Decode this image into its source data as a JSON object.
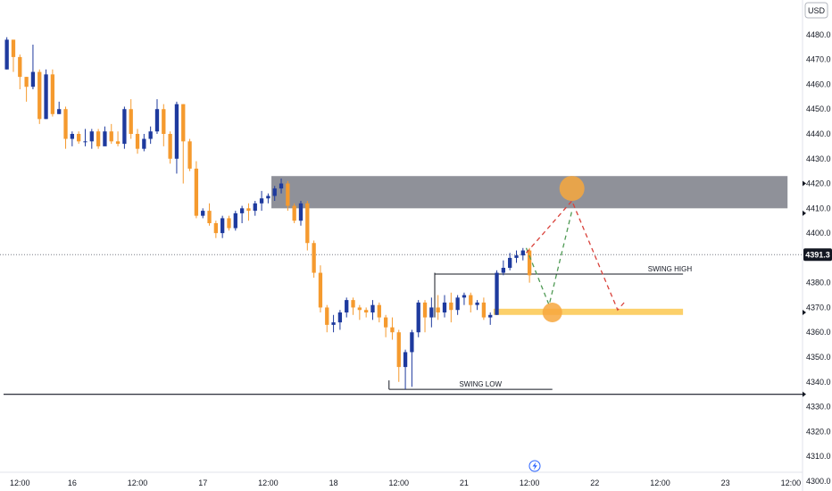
{
  "chart_data": {
    "type": "candlestick",
    "currency": "USD",
    "current_price": "4391.3",
    "colors": {
      "up": "#1e3a9e",
      "down": "#f59a2e",
      "zone": "#8f9199",
      "support": "#fcd06a",
      "target_circle": "#f7a73d",
      "path_up": "#4f9a54",
      "path_down": "#d9413a"
    },
    "ylim": [
      4296,
      4494
    ],
    "xlim": [
      0,
      120
    ],
    "grid": false,
    "y_ticks": [
      "4480.0",
      "4470.0",
      "4460.0",
      "4450.0",
      "4440.0",
      "4430.0",
      "4420.0",
      "4410.0",
      "4400.0",
      "4380.0",
      "4370.0",
      "4360.0",
      "4350.0",
      "4340.0",
      "4330.0",
      "4320.0",
      "4310.0",
      "4300.0"
    ],
    "x_ticks": [
      {
        "label": "12:00",
        "x": 2.5
      },
      {
        "label": "16",
        "x": 10.5
      },
      {
        "label": "12:00",
        "x": 20.5
      },
      {
        "label": "17",
        "x": 30.5
      },
      {
        "label": "12:00",
        "x": 40.5
      },
      {
        "label": "18",
        "x": 50.5
      },
      {
        "label": "12:00",
        "x": 60.5
      },
      {
        "label": "21",
        "x": 70.5
      },
      {
        "label": "12:00",
        "x": 80.5
      },
      {
        "label": "22",
        "x": 90.5
      },
      {
        "label": "12:00",
        "x": 100.5
      },
      {
        "label": "23",
        "x": 110.5
      },
      {
        "label": "12:00",
        "x": 120.5
      }
    ],
    "candles": [
      [
        4466,
        4478,
        4479,
        4466
      ],
      [
        4478,
        4471,
        4478,
        4465
      ],
      [
        4471,
        4463,
        4472,
        4458
      ],
      [
        4463,
        4459,
        4463,
        4453
      ],
      [
        4459,
        4465,
        4476,
        4458
      ],
      [
        4465,
        4446,
        4466,
        4444
      ],
      [
        4446,
        4464,
        4466,
        4446
      ],
      [
        4464,
        4448,
        4466,
        4447
      ],
      [
        4448,
        4450,
        4453,
        4448
      ],
      [
        4450,
        4438,
        4451,
        4434
      ],
      [
        4438,
        4440,
        4441,
        4435
      ],
      [
        4440,
        4437,
        4441,
        4436
      ],
      [
        4437,
        4437,
        4442,
        4435
      ],
      [
        4437,
        4441,
        4442,
        4434
      ],
      [
        4441,
        4435,
        4442,
        4434
      ],
      [
        4435,
        4441,
        4443,
        4439
      ],
      [
        4441,
        4437,
        4444,
        4436
      ],
      [
        4437,
        4436,
        4441,
        4435
      ],
      [
        4436,
        4450,
        4451,
        4434
      ],
      [
        4450,
        4440,
        4454,
        4438
      ],
      [
        4440,
        4434,
        4442,
        4432
      ],
      [
        4434,
        4438,
        4440,
        4433
      ],
      [
        4438,
        4441,
        4443,
        4436
      ],
      [
        4441,
        4450,
        4454,
        4440
      ],
      [
        4450,
        4440,
        4452,
        4435
      ],
      [
        4440,
        4430,
        4441,
        4428
      ],
      [
        4430,
        4452,
        4453,
        4424
      ],
      [
        4452,
        4437,
        4452,
        4420
      ],
      [
        4437,
        4426,
        4438,
        4425
      ],
      [
        4426,
        4407,
        4429,
        4406
      ],
      [
        4407,
        4409,
        4410,
        4406
      ],
      [
        4409,
        4404,
        4412,
        4403
      ],
      [
        4404,
        4400,
        4405,
        4398
      ],
      [
        4400,
        4406,
        4407,
        4398
      ],
      [
        4406,
        4402,
        4407,
        4401
      ],
      [
        4402,
        4408,
        4409,
        4401
      ],
      [
        4408,
        4410,
        4411,
        4404
      ],
      [
        4410,
        4409,
        4412,
        4405
      ],
      [
        4409,
        4412,
        4413,
        4407
      ],
      [
        4412,
        4414,
        4417,
        4409
      ],
      [
        4414,
        4415,
        4416,
        4412
      ],
      [
        4415,
        4418,
        4419,
        4413
      ],
      [
        4418,
        4420,
        4422,
        4416
      ],
      [
        4420,
        4411,
        4421,
        4409
      ],
      [
        4411,
        4405,
        4412,
        4404
      ],
      [
        4405,
        4412,
        4413,
        4403
      ],
      [
        4412,
        4396,
        4413,
        4393
      ],
      [
        4396,
        4384,
        4397,
        4382
      ],
      [
        4384,
        4370,
        4387,
        4368
      ],
      [
        4370,
        4363,
        4371,
        4360
      ],
      [
        4363,
        4364,
        4367,
        4360
      ],
      [
        4364,
        4368,
        4369,
        4361
      ],
      [
        4368,
        4373,
        4374,
        4366
      ],
      [
        4373,
        4370,
        4374,
        4367
      ],
      [
        4370,
        4369,
        4371,
        4365
      ],
      [
        4369,
        4368,
        4370,
        4366
      ],
      [
        4368,
        4371,
        4373,
        4365
      ],
      [
        4371,
        4366,
        4372,
        4364
      ],
      [
        4366,
        4362,
        4367,
        4358
      ],
      [
        4362,
        4360,
        4366,
        4357
      ],
      [
        4360,
        4346,
        4361,
        4340
      ],
      [
        4346,
        4352,
        4353,
        4337
      ],
      [
        4352,
        4360,
        4361,
        4338
      ],
      [
        4360,
        4372,
        4373,
        4358
      ],
      [
        4372,
        4366,
        4373,
        4360
      ],
      [
        4366,
        4370,
        4374,
        4362
      ],
      [
        4370,
        4368,
        4375,
        4365
      ],
      [
        4368,
        4372,
        4375,
        4366
      ],
      [
        4372,
        4369,
        4376,
        4364
      ],
      [
        4369,
        4374,
        4375,
        4367
      ],
      [
        4374,
        4375,
        4376,
        4371
      ],
      [
        4375,
        4371,
        4376,
        4368
      ],
      [
        4371,
        4372,
        4373,
        4369
      ],
      [
        4372,
        4366,
        4374,
        4365
      ],
      [
        4366,
        4367,
        4368,
        4363
      ],
      [
        4367,
        4384,
        4385,
        4367
      ],
      [
        4384,
        4386,
        4389,
        4383
      ],
      [
        4386,
        4390,
        4392,
        4385
      ],
      [
        4390,
        4391,
        4393,
        4388
      ],
      [
        4391,
        4393,
        4394,
        4389
      ],
      [
        4393,
        4383,
        4394,
        4380
      ]
    ],
    "zones": [
      {
        "type": "resistance",
        "y0": 4410,
        "y1": 4423,
        "x0": 41,
        "x1": 120
      },
      {
        "type": "support",
        "y0": 4367,
        "y1": 4369.5,
        "x0": 75,
        "x1": 104
      }
    ],
    "annotations": [
      {
        "label": "SWING HIGH",
        "y": 4383.5,
        "x0": 66,
        "x1": 104,
        "anchor": 102
      },
      {
        "label": "SWING LOW",
        "y": 4337,
        "x0": 59,
        "x1": 84,
        "anchor": 73
      }
    ],
    "horizontal_line": {
      "y": 4335,
      "x0": 0,
      "x1": 120
    },
    "corner_bracket": {
      "x": 66,
      "y_top": 4384,
      "y_bottom": 4366
    },
    "target_circles": [
      {
        "x": 84,
        "y": 4368
      },
      {
        "x": 87,
        "y": 4418
      }
    ],
    "paths": [
      {
        "color_key": "path_up",
        "points": [
          [
            80,
            4394
          ],
          [
            83.5,
            4371
          ],
          [
            87,
            4409
          ]
        ]
      },
      {
        "color_key": "path_down",
        "points": [
          [
            80,
            4392
          ],
          [
            87,
            4413
          ],
          [
            94,
            4369
          ],
          [
            95,
            4372
          ]
        ]
      }
    ],
    "price_markers": [
      {
        "y": 4420
      },
      {
        "y": 4408
      },
      {
        "y": 4368
      },
      {
        "y": 4335
      }
    ]
  }
}
